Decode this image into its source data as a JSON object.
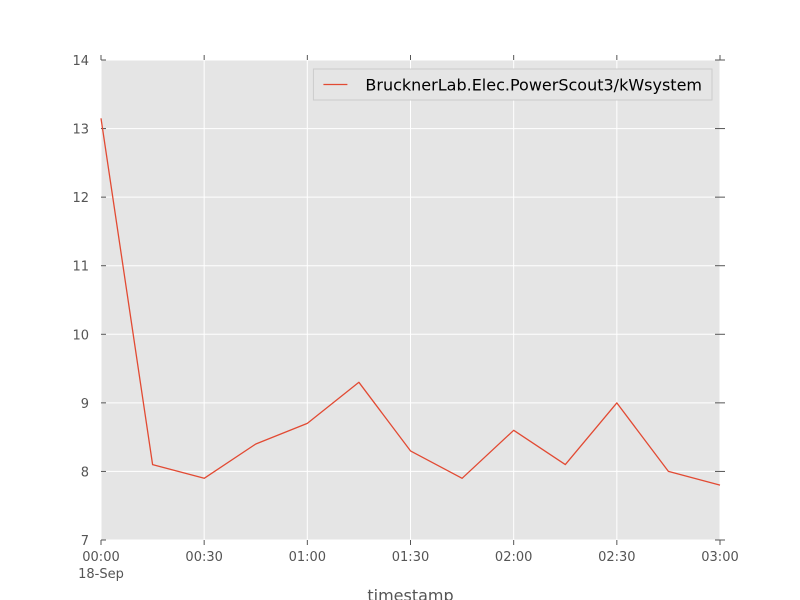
{
  "chart_data": {
    "type": "line",
    "x": [
      "00:00",
      "00:15",
      "00:30",
      "00:45",
      "01:00",
      "01:15",
      "01:30",
      "01:45",
      "02:00",
      "02:15",
      "02:30",
      "02:45",
      "03:00"
    ],
    "x_date": "18-Sep",
    "series": [
      {
        "name": "BrucknerLab.Elec.PowerScout3/kWsystem",
        "values": [
          13.15,
          8.1,
          7.9,
          8.4,
          8.7,
          9.3,
          8.3,
          7.9,
          8.6,
          8.1,
          9.0,
          8.0,
          7.8
        ],
        "color": "#e24a33"
      }
    ],
    "x_ticks": [
      "00:00",
      "00:30",
      "01:00",
      "01:30",
      "02:00",
      "02:30",
      "03:00"
    ],
    "y_ticks": [
      "7",
      "8",
      "9",
      "10",
      "11",
      "12",
      "13",
      "14"
    ],
    "xlabel": "timestamp",
    "ylabel": "",
    "ylim": [
      7,
      14
    ],
    "grid": true,
    "legend": "top-right",
    "background": "#e5e5e5",
    "grid_color": "#ffffff"
  }
}
